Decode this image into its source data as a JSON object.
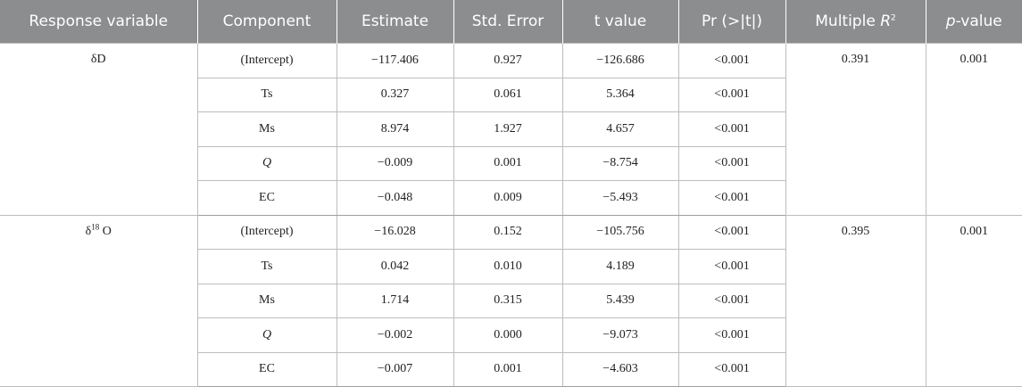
{
  "headers": {
    "response_variable": "Response variable",
    "component": "Component",
    "estimate": "Estimate",
    "std_error": "Std. Error",
    "t_value": "t value",
    "pr": "Pr (>|t|)",
    "multiple_r2_prefix": "Multiple ",
    "multiple_r2_r": "R",
    "multiple_r2_sup": "2",
    "p_value_p": "p",
    "p_value_suffix": "-value"
  },
  "groups": [
    {
      "response_base": "δD",
      "response_sup": "",
      "response_tail": "",
      "multiple_r2": "0.391",
      "p_value": "0.001",
      "rows": [
        {
          "component": "(Intercept)",
          "estimate": "−117.406",
          "std_error": "0.927",
          "t_value": "−126.686",
          "pr": "<0.001"
        },
        {
          "component": "Ts",
          "estimate": "0.327",
          "std_error": "0.061",
          "t_value": "5.364",
          "pr": "<0.001"
        },
        {
          "component": "Ms",
          "estimate": "8.974",
          "std_error": "1.927",
          "t_value": "4.657",
          "pr": "<0.001"
        },
        {
          "component": "Q",
          "estimate": "−0.009",
          "std_error": "0.001",
          "t_value": "−8.754",
          "pr": "<0.001"
        },
        {
          "component": "EC",
          "estimate": "−0.048",
          "std_error": "0.009",
          "t_value": "−5.493",
          "pr": "<0.001"
        }
      ]
    },
    {
      "response_base": "δ",
      "response_sup": "18",
      "response_tail": " O",
      "multiple_r2": "0.395",
      "p_value": "0.001",
      "rows": [
        {
          "component": "(Intercept)",
          "estimate": "−16.028",
          "std_error": "0.152",
          "t_value": "−105.756",
          "pr": "<0.001"
        },
        {
          "component": "Ts",
          "estimate": "0.042",
          "std_error": "0.010",
          "t_value": "4.189",
          "pr": "<0.001"
        },
        {
          "component": "Ms",
          "estimate": "1.714",
          "std_error": "0.315",
          "t_value": "5.439",
          "pr": "<0.001"
        },
        {
          "component": "Q",
          "estimate": "−0.002",
          "std_error": "0.000",
          "t_value": "−9.073",
          "pr": "<0.001"
        },
        {
          "component": "EC",
          "estimate": "−0.007",
          "std_error": "0.001",
          "t_value": "−4.603",
          "pr": "<0.001"
        }
      ]
    }
  ]
}
